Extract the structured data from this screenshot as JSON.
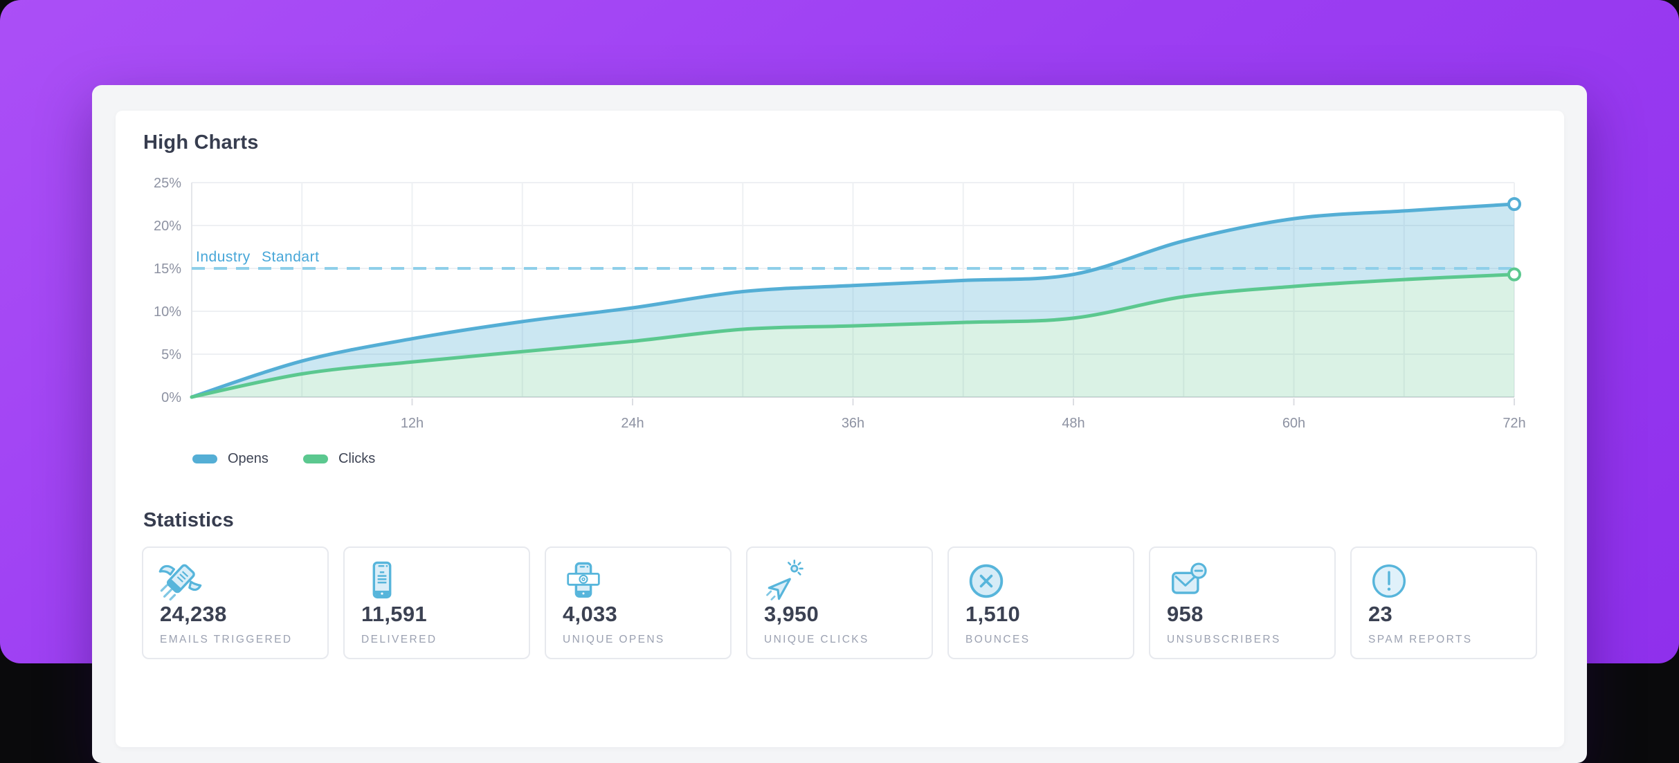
{
  "chart_section": {
    "title": "High Charts"
  },
  "chart_data": {
    "type": "area",
    "title": "High Charts",
    "x": [
      0,
      6,
      12,
      18,
      24,
      30,
      36,
      42,
      48,
      54,
      60,
      66,
      72
    ],
    "x_unit": "h",
    "xlim": [
      0,
      72
    ],
    "ylim": [
      0,
      25
    ],
    "x_grid_step": 6,
    "y_grid_step": 5,
    "grid": true,
    "series": [
      {
        "name": "Opens",
        "color": "#54aed5",
        "fill": "rgba(84,174,213,0.30)",
        "values": [
          0,
          4.2,
          6.8,
          8.8,
          10.4,
          12.3,
          13.0,
          13.6,
          14.3,
          18.2,
          20.8,
          21.7,
          22.5
        ]
      },
      {
        "name": "Clicks",
        "color": "#5bc88f",
        "fill": "rgba(99,201,146,0.24)",
        "values": [
          0,
          2.7,
          4.1,
          5.3,
          6.5,
          7.9,
          8.3,
          8.7,
          9.2,
          11.7,
          12.9,
          13.7,
          14.3
        ]
      }
    ],
    "reference_line": {
      "label": "Industry Standart",
      "value": 15,
      "color": "#8ecfe9",
      "label_color": "#46a6d8"
    },
    "y_ticks": [
      "0%",
      "5%",
      "10%",
      "15%",
      "20%",
      "25%"
    ],
    "x_tick_values": [
      12,
      24,
      36,
      48,
      60,
      72
    ],
    "x_tick_labels": [
      "12h",
      "24h",
      "36h",
      "48h",
      "60h",
      "72h"
    ],
    "legend_position": "bottom-left"
  },
  "stats": {
    "title": "Statistics",
    "items": [
      {
        "value": "24,238",
        "label": "EMAILS TRIGGERED",
        "icon": "flying-mail-icon"
      },
      {
        "value": "11,591",
        "label": "DELIVERED",
        "icon": "phone-icon"
      },
      {
        "value": "4,033",
        "label": "UNIQUE OPENS",
        "icon": "phone-mail-icon"
      },
      {
        "value": "3,950",
        "label": "UNIQUE CLICKS",
        "icon": "cursor-click-icon"
      },
      {
        "value": "1,510",
        "label": "BOUNCES",
        "icon": "x-circle-icon"
      },
      {
        "value": "958",
        "label": "UNSUBSCRIBERS",
        "icon": "mail-minus-icon"
      },
      {
        "value": "23",
        "label": "SPAM REPORTS",
        "icon": "alert-circle-icon"
      }
    ]
  },
  "colors": {
    "background_purple": "#9c3ef2",
    "page_black": "#0a0a0c",
    "outer_card": "#f4f5f7",
    "inner_card": "#ffffff",
    "title_text": "#373d4f",
    "axis_text": "#8d92a2",
    "gridline": "#eef0f3",
    "baseline": "#d7d9de",
    "stat_value_text": "#3b4152",
    "stat_label_text": "#9ba1b1",
    "card_border": "#e7e9ee",
    "icon_blue": "#57b5db",
    "icon_fill": "#dbeef8"
  }
}
